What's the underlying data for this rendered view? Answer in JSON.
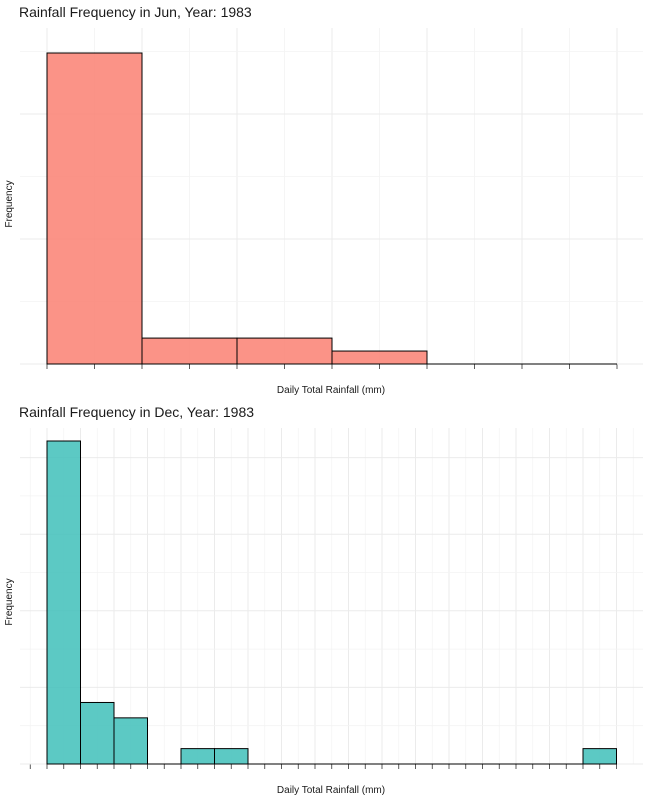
{
  "chart_data": [
    {
      "type": "bar",
      "title": "Rainfall Frequency in Jun, Year: 1983",
      "xlabel": "Daily Total Rainfall (mm)",
      "ylabel": "Frequency",
      "bins": [
        "bin 1",
        "bin 2",
        "bin 3",
        "bin 4",
        "bin 5",
        "bin 6"
      ],
      "values": [
        24,
        2,
        2,
        1,
        0,
        0
      ],
      "ylim": [
        0,
        24
      ],
      "color": "#FA8072",
      "grid": true,
      "legend": "none"
    },
    {
      "type": "bar",
      "title": "Rainfall Frequency in Dec, Year: 1983",
      "xlabel": "Daily Total Rainfall (mm)",
      "ylabel": "Frequency",
      "bins": [
        "bin 1",
        "bin 2",
        "bin 3",
        "bin 4",
        "bin 5",
        "bin 6",
        "bin 7",
        "bin 8",
        "bin 9",
        "bin 10",
        "bin 11",
        "bin 12",
        "bin 13",
        "bin 14",
        "bin 15",
        "bin 16",
        "bin 17"
      ],
      "values": [
        21,
        4,
        3,
        0,
        1,
        1,
        0,
        0,
        0,
        0,
        0,
        0,
        0,
        0,
        0,
        0,
        1
      ],
      "ylim": [
        0,
        21
      ],
      "color": "#40C0BA",
      "grid": true,
      "legend": "none"
    }
  ]
}
